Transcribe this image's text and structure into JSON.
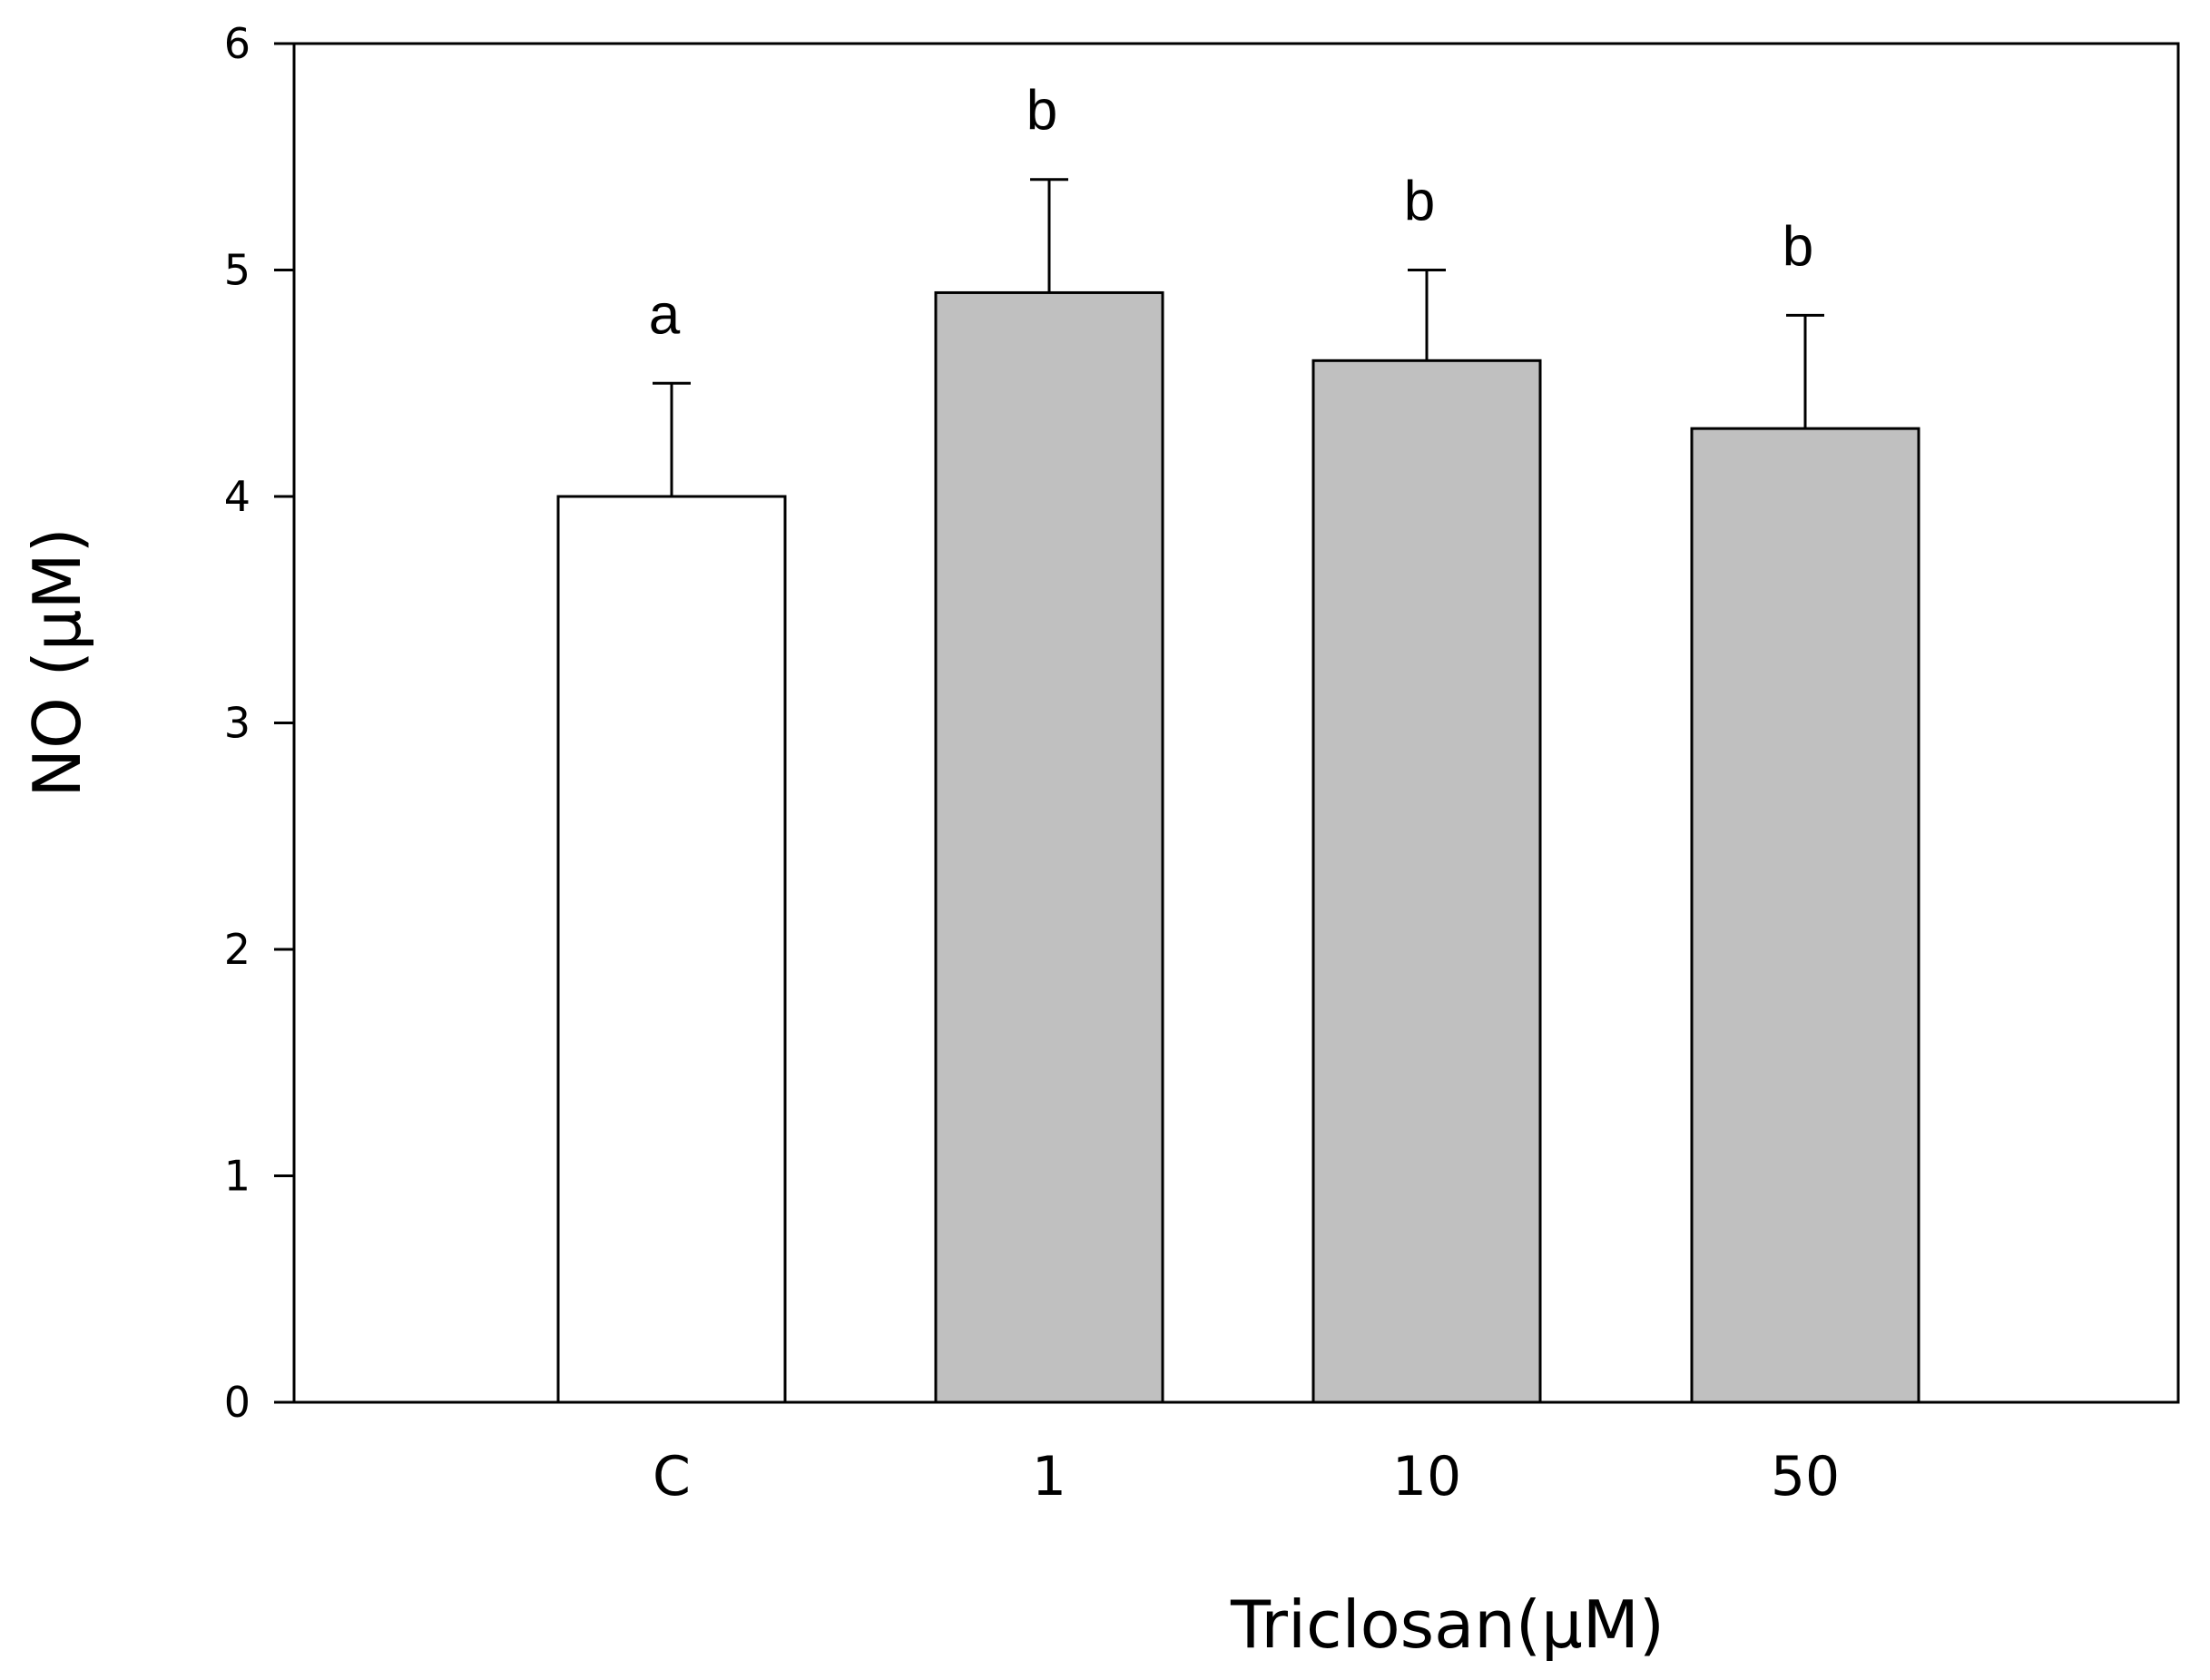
{
  "chart_data": {
    "type": "bar",
    "title": "",
    "xlabel": "Triclosan(μM)",
    "ylabel": "NO (μM)",
    "categories": [
      "C",
      "1",
      "10",
      "50"
    ],
    "values": [
      4.0,
      4.9,
      4.6,
      4.3
    ],
    "errors": [
      0.5,
      0.5,
      0.4,
      0.5
    ],
    "significance": [
      "a",
      "b",
      "b",
      "b"
    ],
    "bar_colors": [
      "#ffffff",
      "#c0c0c0",
      "#c0c0c0",
      "#c0c0c0"
    ],
    "ylim": [
      0,
      6
    ],
    "yticks": [
      0,
      1,
      2,
      3,
      4,
      5,
      6
    ],
    "grid": false
  }
}
